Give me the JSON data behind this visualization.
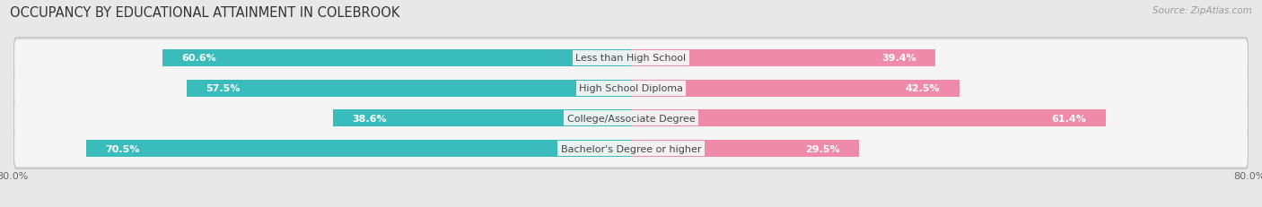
{
  "title": "OCCUPANCY BY EDUCATIONAL ATTAINMENT IN COLEBROOK",
  "source": "Source: ZipAtlas.com",
  "categories": [
    "Less than High School",
    "High School Diploma",
    "College/Associate Degree",
    "Bachelor's Degree or higher"
  ],
  "owner_values": [
    60.6,
    57.5,
    38.6,
    70.5
  ],
  "renter_values": [
    39.4,
    42.5,
    61.4,
    29.5
  ],
  "owner_color": "#3bbcbc",
  "owner_color_light": "#7dd4d4",
  "renter_color": "#f08aaa",
  "renter_color_light": "#f8c0d0",
  "bar_height": 0.62,
  "xlim": 80.0,
  "background_color": "#e8e8e8",
  "bar_bg_color": "#f5f5f5",
  "bar_border_color": "#cccccc",
  "title_fontsize": 10.5,
  "source_fontsize": 7.5,
  "label_fontsize": 8.0,
  "category_fontsize": 8.0,
  "legend_fontsize": 8.0,
  "tick_fontsize": 8.0,
  "owner_label_inside_threshold": 15.0
}
